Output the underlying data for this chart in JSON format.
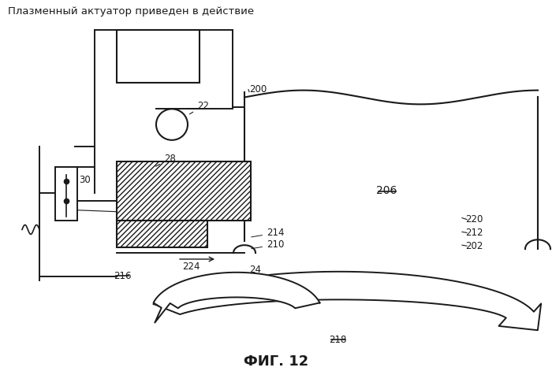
{
  "title": "Плазменный актуатор приведен в действие",
  "fig_label": "ФИГ. 12",
  "bg_color": "#ffffff",
  "line_color": "#1a1a1a",
  "lw": 1.4
}
